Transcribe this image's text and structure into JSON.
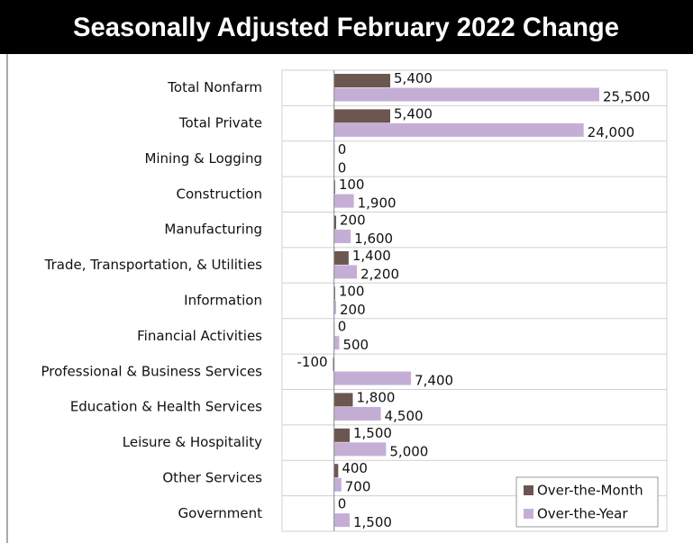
{
  "chart_data": {
    "type": "hbar",
    "title": "Seasonally Adjusted February 2022 Change",
    "categories": [
      "Total Nonfarm",
      "Total Private",
      "Mining & Logging",
      "Construction",
      "Manufacturing",
      "Trade, Transportation, & Utilities",
      "Information",
      "Financial Activities",
      "Professional & Business Services",
      "Education & Health Services",
      "Leisure & Hospitality",
      "Other Services",
      "Government"
    ],
    "series": [
      {
        "name": "Over-the-Month",
        "color": "#6b5650",
        "values": [
          5400,
          5400,
          0,
          100,
          200,
          1400,
          100,
          0,
          -100,
          1800,
          1500,
          400,
          0
        ],
        "value_labels": [
          "5,400",
          "5,400",
          "0",
          "100",
          "200",
          "1,400",
          "100",
          "0",
          "-100",
          "1,800",
          "1,500",
          "400",
          "0"
        ]
      },
      {
        "name": "Over-the-Year",
        "color": "#c5aed6",
        "values": [
          25500,
          24000,
          0,
          1900,
          1600,
          2200,
          200,
          500,
          7400,
          4500,
          5000,
          700,
          1500
        ],
        "value_labels": [
          "25,500",
          "24,000",
          "0",
          "1,900",
          "1,600",
          "2,200",
          "200",
          "500",
          "7,400",
          "4,500",
          "5,000",
          "700",
          "1,500"
        ]
      }
    ],
    "xlim": [
      -5000,
      32000
    ],
    "legend": "lower right"
  }
}
